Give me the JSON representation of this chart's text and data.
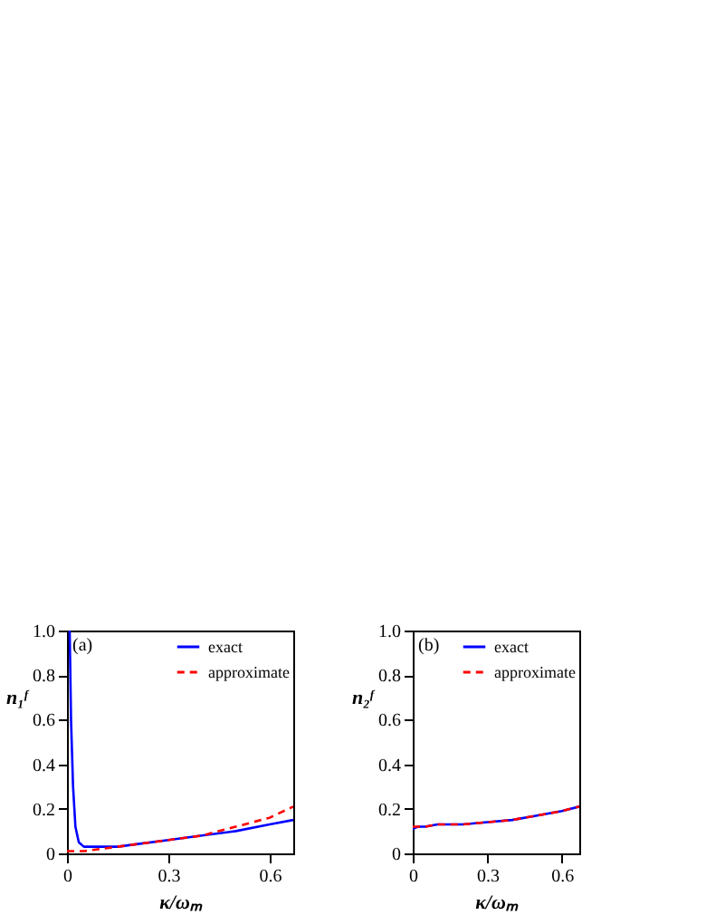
{
  "chart_data": [
    {
      "type": "line",
      "xlabel": "κ/ωₘ",
      "ylabel": "n₁ᶠ",
      "annotations": [
        "(a)"
      ],
      "xlim": [
        0,
        0.67
      ],
      "ylim": [
        0,
        1.0
      ],
      "xticks": [
        0,
        0.3,
        0.6
      ],
      "yticks": [
        0,
        0.2,
        0.4,
        0.6,
        0.8,
        {
          "value": 1,
          "label": "1.0"
        }
      ],
      "grid": false,
      "legend": "top right",
      "marker": "none",
      "series": [
        {
          "name": "exact",
          "color": "#0000ff",
          "line_style": "solid",
          "x": [
            0.008,
            0.012,
            0.018,
            0.025,
            0.035,
            0.05,
            0.07,
            0.1,
            0.15,
            0.2,
            0.3,
            0.4,
            0.5,
            0.6,
            0.67
          ],
          "values": [
            1.0,
            0.6,
            0.3,
            0.12,
            0.05,
            0.03,
            0.03,
            0.03,
            0.03,
            0.04,
            0.06,
            0.08,
            0.1,
            0.13,
            0.15
          ]
        },
        {
          "name": "approximate",
          "color": "#ff0000",
          "line_style": "dashed",
          "x": [
            0,
            0.05,
            0.1,
            0.15,
            0.2,
            0.3,
            0.4,
            0.5,
            0.6,
            0.67
          ],
          "values": [
            0.01,
            0.01,
            0.02,
            0.03,
            0.04,
            0.06,
            0.08,
            0.12,
            0.16,
            0.21
          ]
        }
      ]
    },
    {
      "type": "line",
      "xlabel": "κ/ωₘ",
      "ylabel": "n₂ᶠ",
      "annotations": [
        "(b)"
      ],
      "xlim": [
        0,
        0.67
      ],
      "ylim": [
        0,
        1.0
      ],
      "xticks": [
        0,
        0.3,
        0.6
      ],
      "yticks": [
        0,
        0.2,
        0.4,
        0.6,
        0.8,
        {
          "value": 1,
          "label": "1.0"
        }
      ],
      "grid": false,
      "legend": "top right",
      "marker": "none",
      "series": [
        {
          "name": "exact",
          "color": "#0000ff",
          "line_style": "solid",
          "x": [
            0,
            0.02,
            0.05,
            0.1,
            0.2,
            0.3,
            0.4,
            0.5,
            0.6,
            0.67
          ],
          "values": [
            0.11,
            0.12,
            0.12,
            0.13,
            0.13,
            0.14,
            0.15,
            0.17,
            0.19,
            0.21
          ]
        },
        {
          "name": "approximate",
          "color": "#ff0000",
          "line_style": "dashed",
          "x": [
            0,
            0.02,
            0.05,
            0.1,
            0.2,
            0.3,
            0.4,
            0.5,
            0.6,
            0.67
          ],
          "values": [
            0.12,
            0.12,
            0.12,
            0.13,
            0.13,
            0.14,
            0.15,
            0.17,
            0.19,
            0.21
          ]
        }
      ]
    }
  ]
}
